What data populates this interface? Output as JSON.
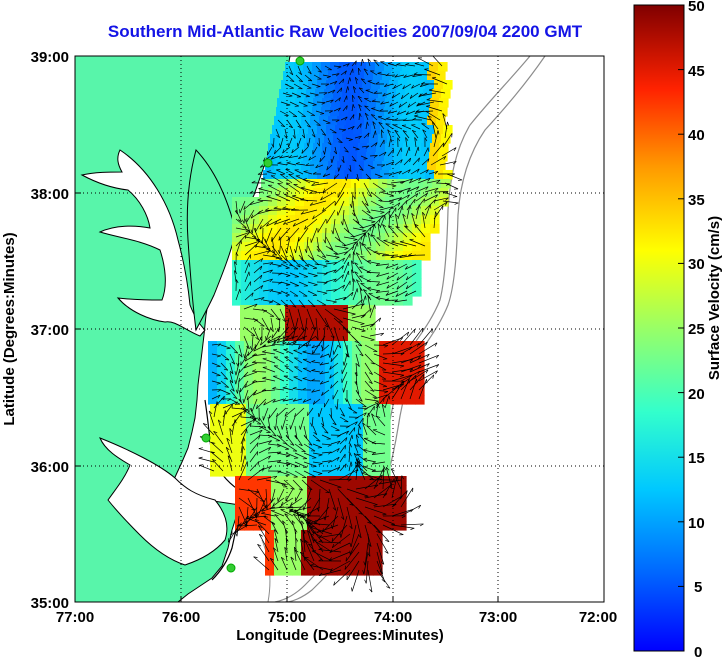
{
  "title": "Southern Mid-Atlantic Raw Velocities 2007/09/04 2200 GMT",
  "map": {
    "x_axis": {
      "label": "Longitude (Degrees:Minutes)",
      "ticks": [
        "77:00",
        "76:00",
        "75:00",
        "74:00",
        "73:00",
        "72:00"
      ],
      "range": [
        -77,
        -72
      ]
    },
    "y_axis": {
      "label": "Latitude (Degrees:Minutes)",
      "ticks": [
        "39:00",
        "38:00",
        "37:00",
        "36:00",
        "35:00"
      ],
      "range": [
        35,
        39
      ]
    },
    "grid": "dotted",
    "land_color": "#58f5aa",
    "coastline_color": "#000000",
    "bathymetry_color": "#8c8c8c",
    "station_marker_color": "#33cc33"
  },
  "colorbar": {
    "label": "Surface Velocity (cm/s)",
    "ticks": [
      "50",
      "45",
      "40",
      "35",
      "30",
      "25",
      "20",
      "15",
      "10",
      "5",
      "0"
    ],
    "min": 0,
    "max": 50,
    "colormap": "jet"
  }
}
